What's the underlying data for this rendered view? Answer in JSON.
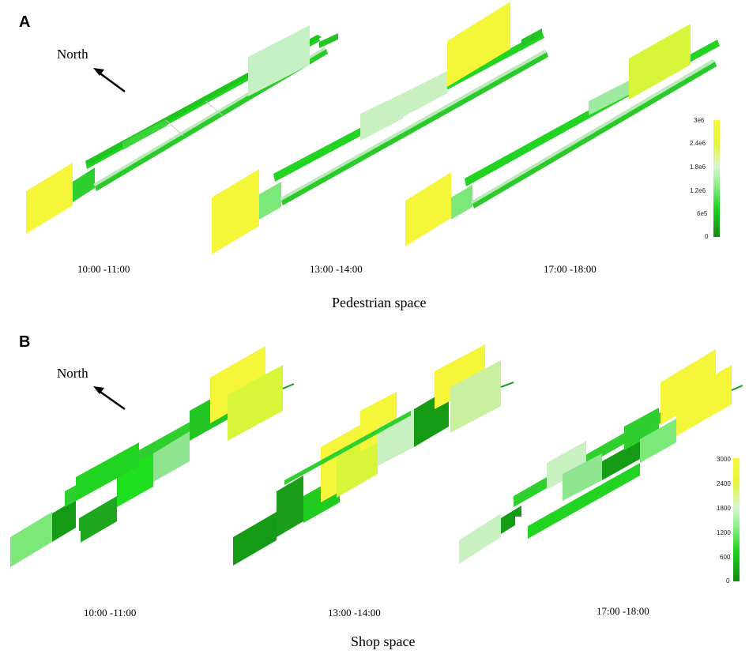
{
  "colors": {
    "yellow": "#f5f53a",
    "yellow_green": "#d9f53a",
    "pale_green": "#c8f0c0",
    "light_green": "#7de87a",
    "green": "#2fcf2f",
    "bright_green": "#1fe01f",
    "dark_green": "#169b16"
  },
  "panel_a": {
    "letter": "A",
    "north_label": "North",
    "time_labels": [
      "10:00 -11:00",
      "13:00 -14:00",
      "17:00 -18:00"
    ],
    "section_title": "Pedestrian space",
    "legend_ticks": [
      "3e6",
      "2.4e6",
      "1.8e6",
      "1.2e6",
      "6e5",
      "0"
    ]
  },
  "panel_b": {
    "letter": "B",
    "north_label": "North",
    "time_labels": [
      "10:00 -11:00",
      "13:00 -14:00",
      "17:00 -18:00"
    ],
    "section_title": "Shop space",
    "legend_ticks": [
      "3000",
      "2400",
      "1800",
      "1200",
      "600",
      "0"
    ]
  }
}
